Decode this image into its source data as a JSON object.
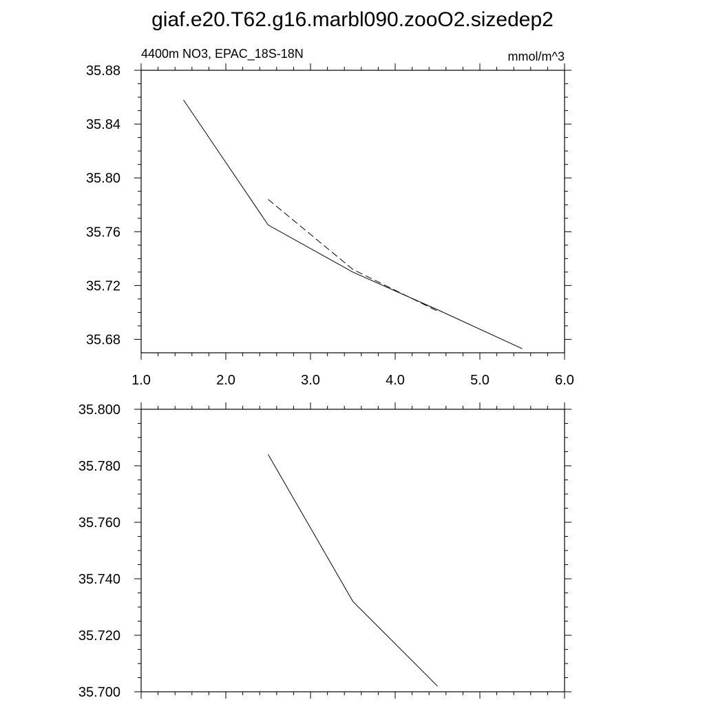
{
  "title": "giaf.e20.T62.g16.marbl090.zooO2.sizedep2",
  "chart_data": [
    {
      "type": "line",
      "left_label": "4400m NO3, EPAC_18S-18N",
      "right_label": "mmol/m^3",
      "xlim": [
        1.0,
        6.0
      ],
      "ylim": [
        35.67,
        35.88
      ],
      "xticks": [
        1.0,
        2.0,
        3.0,
        4.0,
        5.0,
        6.0
      ],
      "xtick_labels": [
        "1.0",
        "2.0",
        "3.0",
        "4.0",
        "5.0",
        "6.0"
      ],
      "yticks": [
        35.68,
        35.72,
        35.76,
        35.8,
        35.84,
        35.88
      ],
      "ytick_labels": [
        "35.68",
        "35.72",
        "35.76",
        "35.80",
        "35.84",
        "35.88"
      ],
      "series": [
        {
          "style": "solid",
          "color": "#000000",
          "x": [
            1.5,
            2.5,
            3.5,
            4.5,
            5.5
          ],
          "y": [
            35.858,
            35.765,
            35.73,
            35.702,
            35.673
          ]
        },
        {
          "style": "dashed",
          "color": "#000000",
          "x": [
            2.5,
            3.5,
            4.5
          ],
          "y": [
            35.784,
            35.732,
            35.701
          ]
        }
      ]
    },
    {
      "type": "line",
      "xlim": [
        1.0,
        6.0
      ],
      "ylim": [
        35.7,
        35.8
      ],
      "xticks": [
        1.0,
        2.0,
        3.0,
        4.0,
        5.0,
        6.0
      ],
      "yticks": [
        35.7,
        35.72,
        35.74,
        35.76,
        35.78,
        35.8
      ],
      "ytick_labels": [
        "35.700",
        "35.720",
        "35.740",
        "35.760",
        "35.780",
        "35.800"
      ],
      "series": [
        {
          "style": "solid",
          "color": "#000000",
          "x": [
            2.5,
            3.5,
            4.5
          ],
          "y": [
            35.784,
            35.732,
            35.702
          ]
        }
      ]
    }
  ]
}
